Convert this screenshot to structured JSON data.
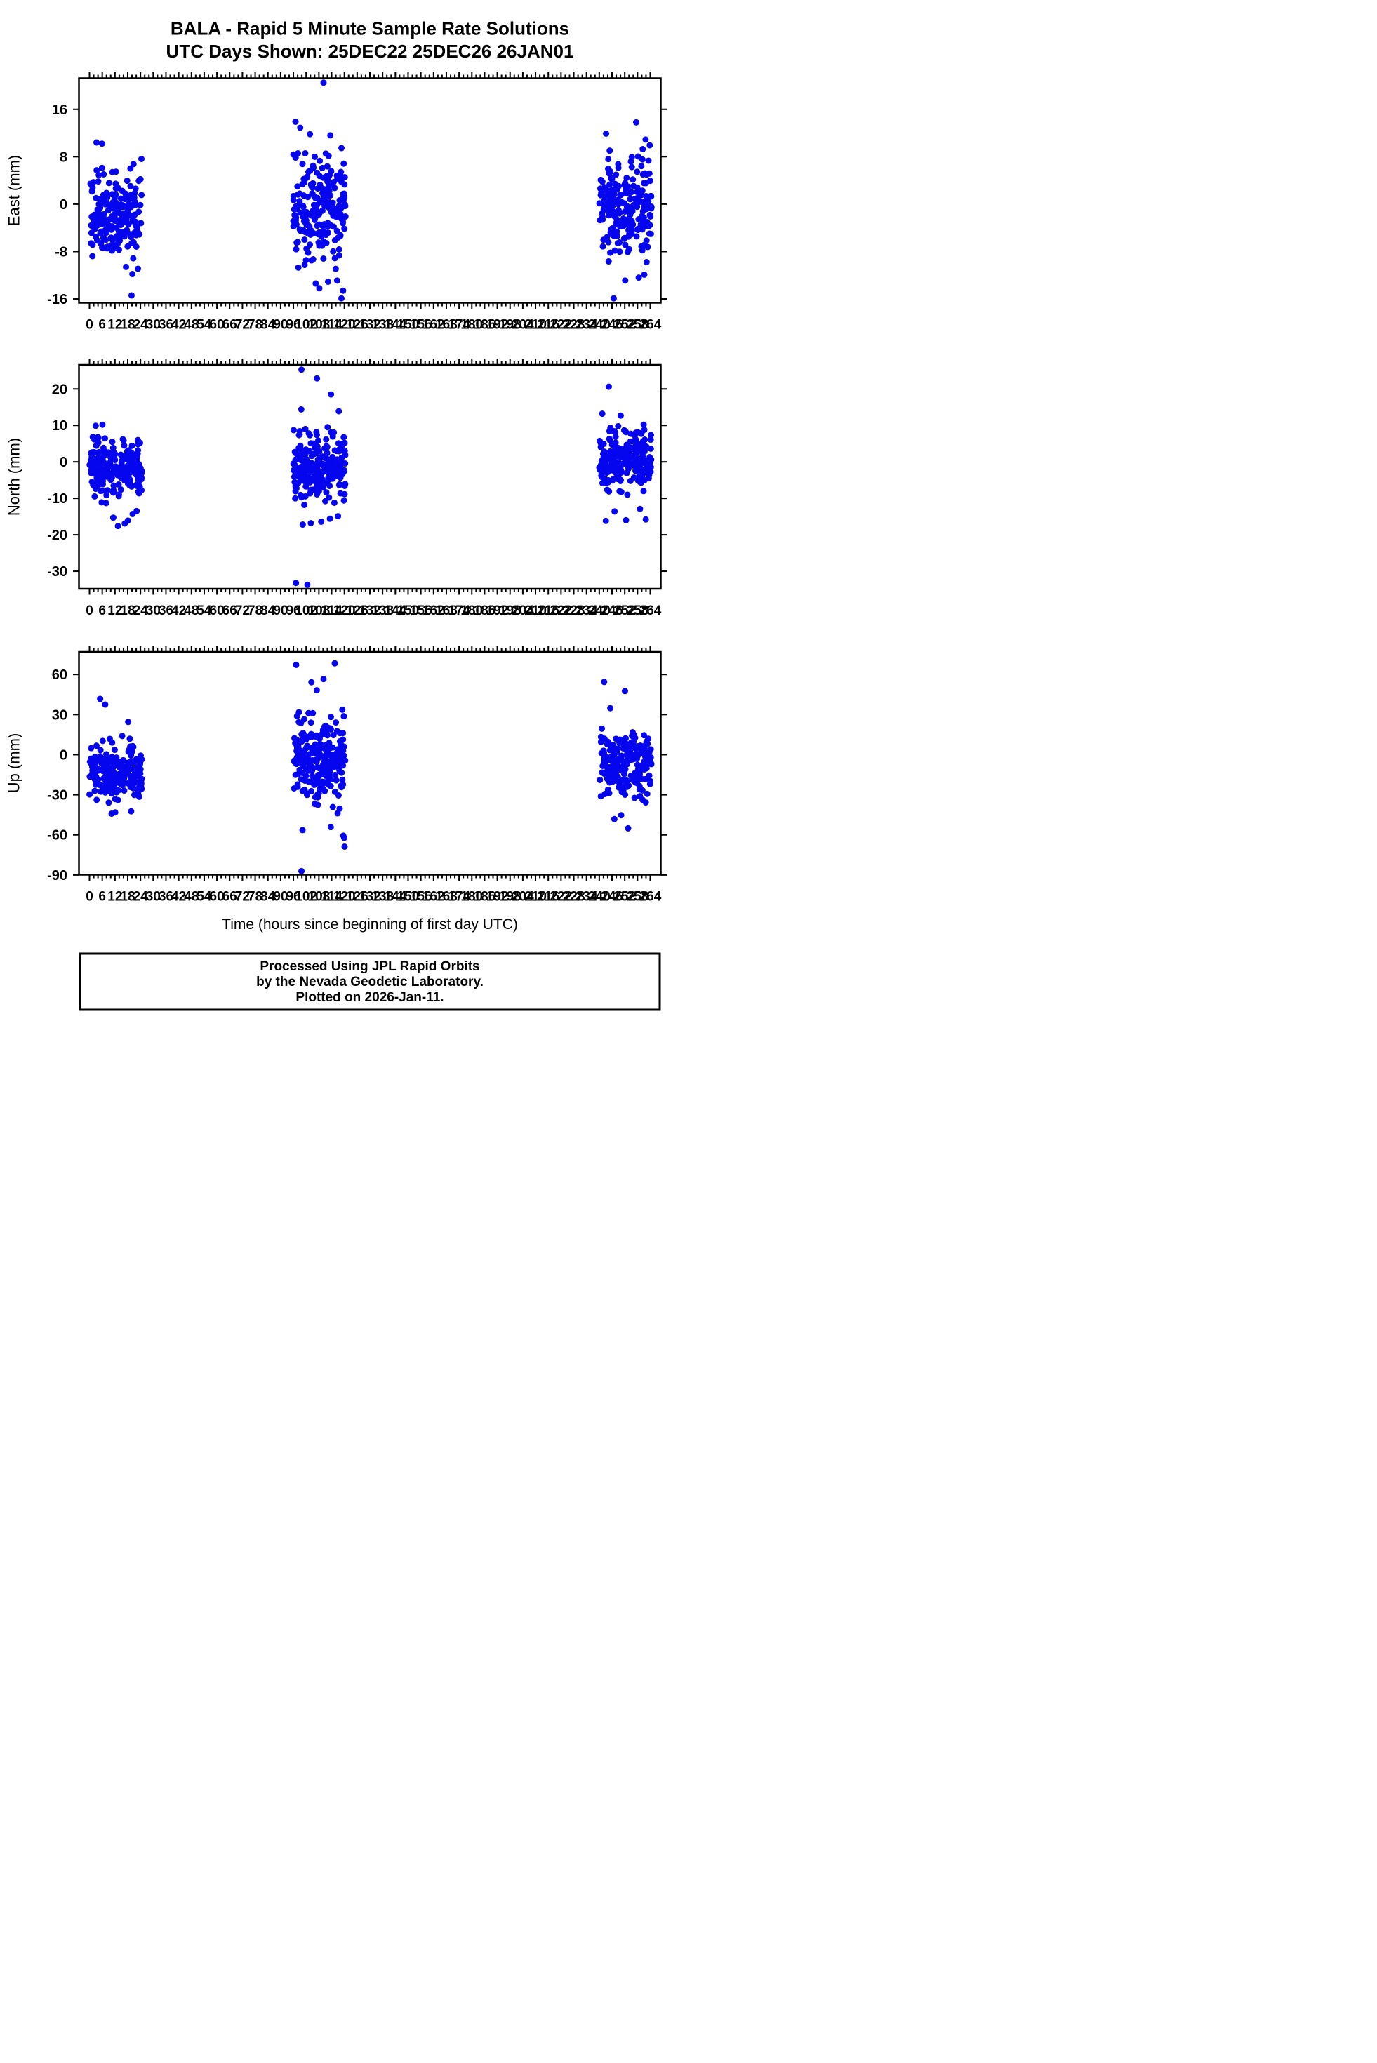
{
  "title": {
    "line1": "BALA - Rapid 5 Minute Sample Rate Solutions",
    "line2": "UTC Days Shown:  25DEC22 25DEC26 26JAN01"
  },
  "xlabel": "Time (hours since beginning of first day UTC)",
  "footer": {
    "line1": "Processed Using JPL Rapid Orbits",
    "line2": "by the Nevada Geodetic Laboratory.",
    "line3": "Plotted on 2026-Jan-11."
  },
  "style": {
    "dot_color": "#0505ee",
    "axis_color": "#000000",
    "background": "#ffffff"
  },
  "chart_data": [
    {
      "id": "east",
      "type": "scatter",
      "ylabel": "East (mm)",
      "yticks": [
        16,
        8,
        0,
        -8,
        -16
      ],
      "y_range": [
        -16.65,
        21.24
      ],
      "x_range": [
        -4.96,
        268.96
      ],
      "x_tick": {
        "min": 0,
        "max": 264,
        "major": 6,
        "minor": 2
      },
      "clusters": [
        {
          "x": [
            0,
            24.6
          ],
          "n": 195,
          "mean": -1.8,
          "std": 3.6,
          "clip": [
            -9.6,
            10.6
          ]
        },
        {
          "x": [
            96,
            120.6
          ],
          "n": 215,
          "mean": -1.0,
          "std": 4.8,
          "clip": [
            -12.6,
            12.6
          ]
        },
        {
          "x": [
            240,
            264.6
          ],
          "n": 220,
          "mean": -0.5,
          "std": 4.3,
          "clip": [
            -11.6,
            11.2
          ]
        }
      ],
      "outliers": [
        [
          19.8,
          -15.4
        ],
        [
          20.2,
          -11.8
        ],
        [
          17.2,
          -10.6
        ],
        [
          22.8,
          -10.9
        ],
        [
          3.3,
          10.4
        ],
        [
          5.9,
          10.2
        ],
        [
          110.2,
          20.5
        ],
        [
          97.0,
          13.9
        ],
        [
          99.2,
          12.9
        ],
        [
          103.8,
          11.8
        ],
        [
          113.4,
          11.6
        ],
        [
          106.5,
          -13.4
        ],
        [
          108.2,
          -14.2
        ],
        [
          112.3,
          -13.1
        ],
        [
          116.6,
          -12.9
        ],
        [
          118.6,
          -15.9
        ],
        [
          119.4,
          -14.6
        ],
        [
          257.4,
          13.8
        ],
        [
          243.2,
          11.9
        ],
        [
          261.8,
          10.9
        ],
        [
          246.8,
          -15.9
        ],
        [
          252.2,
          -12.9
        ],
        [
          258.6,
          -12.4
        ],
        [
          261.2,
          -11.9
        ]
      ]
    },
    {
      "id": "north",
      "type": "scatter",
      "ylabel": "North (mm)",
      "yticks": [
        20,
        10,
        0,
        -10,
        -20,
        -30
      ],
      "y_range": [
        -34.8,
        26.6
      ],
      "x_range": [
        -4.96,
        268.96
      ],
      "x_tick": {
        "min": 0,
        "max": 264,
        "major": 6,
        "minor": 2
      },
      "clusters": [
        {
          "x": [
            0,
            24.6
          ],
          "n": 205,
          "mean": -2.0,
          "std": 4.0,
          "clip": [
            -12.6,
            9.8
          ]
        },
        {
          "x": [
            96,
            120.6
          ],
          "n": 215,
          "mean": -1.2,
          "std": 4.6,
          "clip": [
            -13.2,
            11.2
          ]
        },
        {
          "x": [
            240,
            264.6
          ],
          "n": 220,
          "mean": 0.3,
          "std": 3.9,
          "clip": [
            -10.6,
            10.8
          ]
        }
      ],
      "outliers": [
        [
          6.1,
          10.2
        ],
        [
          2.9,
          9.9
        ],
        [
          13.4,
          -17.6
        ],
        [
          16.6,
          -16.9
        ],
        [
          11.2,
          -15.3
        ],
        [
          18.1,
          -16.1
        ],
        [
          20.3,
          -14.3
        ],
        [
          22.2,
          -13.5
        ],
        [
          99.8,
          25.3
        ],
        [
          107.1,
          22.9
        ],
        [
          113.7,
          18.5
        ],
        [
          99.7,
          14.4
        ],
        [
          117.4,
          13.9
        ],
        [
          97.2,
          -33.2
        ],
        [
          102.6,
          -33.7
        ],
        [
          100.4,
          -17.2
        ],
        [
          104.2,
          -16.8
        ],
        [
          109.1,
          -16.4
        ],
        [
          113.2,
          -15.6
        ],
        [
          117.0,
          -14.9
        ],
        [
          244.5,
          20.6
        ],
        [
          241.4,
          13.2
        ],
        [
          250.1,
          12.7
        ],
        [
          243.1,
          -16.2
        ],
        [
          252.6,
          -16.0
        ],
        [
          247.2,
          -13.6
        ],
        [
          259.2,
          -12.9
        ],
        [
          261.9,
          -15.8
        ]
      ]
    },
    {
      "id": "up",
      "type": "scatter",
      "ylabel": "Up (mm)",
      "yticks": [
        60,
        30,
        0,
        -30,
        -60,
        -90
      ],
      "y_range": [
        -89.8,
        76.9
      ],
      "x_range": [
        -4.96,
        268.96
      ],
      "x_tick": {
        "min": 0,
        "max": 264,
        "major": 6,
        "minor": 2
      },
      "clusters": [
        {
          "x": [
            0,
            24.6
          ],
          "n": 200,
          "mean": -12,
          "std": 10.5,
          "clip": [
            -37,
            21
          ]
        },
        {
          "x": [
            96,
            120.6
          ],
          "n": 220,
          "mean": -4,
          "std": 16,
          "clip": [
            -48,
            50
          ]
        },
        {
          "x": [
            240,
            264.6
          ],
          "n": 215,
          "mean": -7,
          "std": 12.5,
          "clip": [
            -41,
            30
          ]
        }
      ],
      "outliers": [
        [
          5.0,
          41.7
        ],
        [
          7.4,
          37.5
        ],
        [
          18.2,
          24.5
        ],
        [
          12.1,
          -43.2
        ],
        [
          10.4,
          -44.1
        ],
        [
          19.6,
          -42.4
        ],
        [
          97.3,
          67.2
        ],
        [
          115.5,
          68.4
        ],
        [
          104.5,
          54.2
        ],
        [
          110.2,
          56.6
        ],
        [
          99.8,
          -87.1
        ],
        [
          119.5,
          -60.6
        ],
        [
          119.9,
          -62.2
        ],
        [
          120.1,
          -68.8
        ],
        [
          100.3,
          -56.4
        ],
        [
          113.6,
          -54.2
        ],
        [
          242.3,
          54.4
        ],
        [
          252.1,
          47.6
        ],
        [
          245.2,
          34.8
        ],
        [
          247.1,
          -48.2
        ],
        [
          253.6,
          -55.1
        ],
        [
          250.3,
          -45.3
        ]
      ]
    }
  ]
}
